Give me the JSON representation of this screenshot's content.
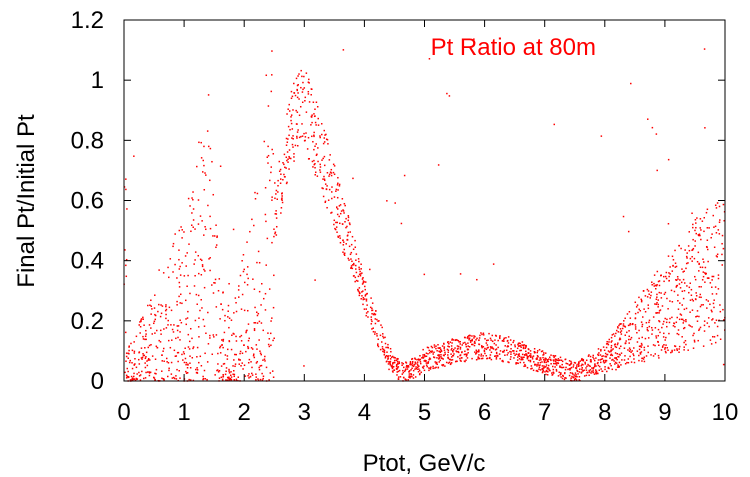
{
  "chart_data": {
    "type": "scatter",
    "title": "",
    "xlabel": "Ptot, GeV/c",
    "ylabel": "Final Pt/Initial Pt",
    "xlim": [
      0,
      10
    ],
    "ylim": [
      0,
      1.2
    ],
    "xticks": [
      "0",
      "1",
      "2",
      "3",
      "4",
      "5",
      "6",
      "7",
      "8",
      "9",
      "10"
    ],
    "yticks": [
      "0",
      "0.2",
      "0.4",
      "0.6",
      "0.8",
      "1",
      "1.2"
    ],
    "grid": false,
    "legend_position": "top-right",
    "point_color": "#ff0000",
    "series": [
      {
        "name": "Pt Ratio at 80m",
        "color": "#ff0000",
        "trend_points": [
          [
            0.05,
            0.05
          ],
          [
            0.2,
            0.08
          ],
          [
            0.4,
            0.12
          ],
          [
            0.6,
            0.15
          ],
          [
            0.8,
            0.22
          ],
          [
            1.0,
            0.25
          ],
          [
            1.2,
            0.35
          ],
          [
            1.4,
            0.45
          ],
          [
            1.6,
            0.15
          ],
          [
            1.8,
            0.1
          ],
          [
            2.0,
            0.2
          ],
          [
            2.2,
            0.3
          ],
          [
            2.4,
            0.45
          ],
          [
            2.6,
            0.65
          ],
          [
            2.8,
            0.85
          ],
          [
            3.0,
            0.92
          ],
          [
            3.2,
            0.8
          ],
          [
            3.4,
            0.68
          ],
          [
            3.6,
            0.55
          ],
          [
            3.8,
            0.42
          ],
          [
            4.0,
            0.3
          ],
          [
            4.2,
            0.18
          ],
          [
            4.4,
            0.08
          ],
          [
            4.6,
            0.03
          ],
          [
            4.8,
            0.04
          ],
          [
            5.0,
            0.07
          ],
          [
            5.5,
            0.1
          ],
          [
            6.0,
            0.12
          ],
          [
            6.5,
            0.1
          ],
          [
            7.0,
            0.06
          ],
          [
            7.5,
            0.03
          ],
          [
            8.0,
            0.06
          ],
          [
            8.5,
            0.13
          ],
          [
            9.0,
            0.2
          ],
          [
            9.5,
            0.27
          ],
          [
            10.0,
            0.33
          ]
        ]
      }
    ]
  }
}
